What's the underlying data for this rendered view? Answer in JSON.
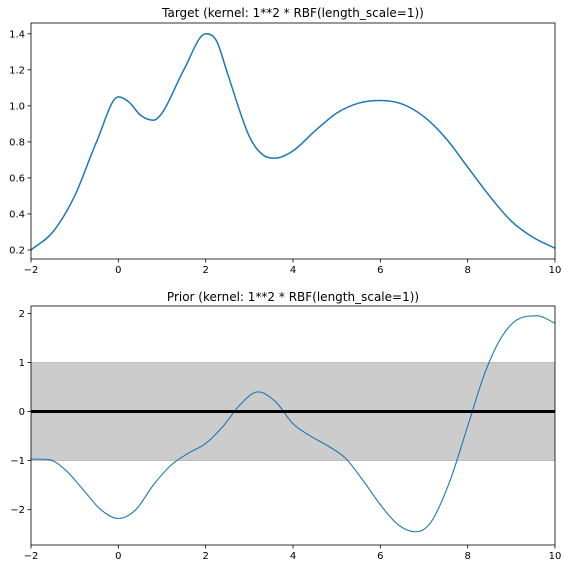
{
  "chart_data": [
    {
      "type": "line",
      "title": "Target (kernel:  1**2 * RBF(length_scale=1))",
      "xlabel": "",
      "ylabel": "",
      "xlim": [
        -2,
        10
      ],
      "ylim": [
        0.15,
        1.46
      ],
      "xticks": [
        "-2",
        "0",
        "2",
        "4",
        "6",
        "8",
        "10"
      ],
      "yticks": [
        "0.2",
        "0.4",
        "0.6",
        "0.8",
        "1.0",
        "1.2",
        "1.4"
      ],
      "grid": false,
      "legend": "none",
      "series": [
        {
          "color": "#1f77b4",
          "x": [
            -2,
            -1.5,
            -1,
            -0.5,
            0,
            0.25,
            0.5,
            0.8,
            1,
            1.5,
            2,
            2.25,
            2.5,
            3,
            3.3,
            3.6,
            4,
            4.5,
            5,
            5.5,
            6,
            6.5,
            7,
            7.5,
            8,
            8.5,
            9,
            9.5,
            10
          ],
          "y": [
            0.2,
            0.3,
            0.5,
            0.8,
            1.05,
            1.02,
            0.95,
            0.92,
            0.96,
            1.2,
            1.4,
            1.36,
            1.18,
            0.83,
            0.73,
            0.71,
            0.75,
            0.86,
            0.96,
            1.015,
            1.03,
            1.01,
            0.94,
            0.82,
            0.66,
            0.5,
            0.36,
            0.27,
            0.21
          ]
        }
      ]
    },
    {
      "type": "line",
      "title": "Prior (kernel:  1**2 * RBF(length_scale=1))",
      "xlabel": "",
      "ylabel": "",
      "xlim": [
        -2,
        10
      ],
      "ylim": [
        -2.72,
        2.15
      ],
      "xticks": [
        "-2",
        "0",
        "2",
        "4",
        "6",
        "8",
        "10"
      ],
      "yticks": [
        "-2",
        "-1",
        "0",
        "1",
        "2"
      ],
      "grid": false,
      "legend": "none",
      "band": {
        "lower": -1,
        "upper": 1,
        "color": "#cccccc"
      },
      "mean_line": {
        "value": 0,
        "color": "#000000"
      },
      "series": [
        {
          "color": "#1f77b4",
          "x": [
            -2,
            -1.6,
            -1.2,
            -0.8,
            -0.4,
            0,
            0.4,
            0.8,
            1.2,
            1.6,
            2,
            2.4,
            2.8,
            3.2,
            3.6,
            4,
            4.4,
            4.8,
            5.2,
            5.6,
            6,
            6.4,
            6.8,
            7,
            7.2,
            7.6,
            8,
            8.4,
            8.8,
            9.2,
            9.6,
            10
          ],
          "y": [
            -0.97,
            -0.98,
            -1.2,
            -1.6,
            -2.0,
            -2.18,
            -2.0,
            -1.5,
            -1.1,
            -0.85,
            -0.65,
            -0.3,
            0.15,
            0.4,
            0.2,
            -0.25,
            -0.5,
            -0.7,
            -0.95,
            -1.4,
            -1.9,
            -2.3,
            -2.45,
            -2.4,
            -2.2,
            -1.4,
            -0.3,
            0.8,
            1.55,
            1.9,
            1.95,
            1.8
          ]
        }
      ]
    }
  ]
}
